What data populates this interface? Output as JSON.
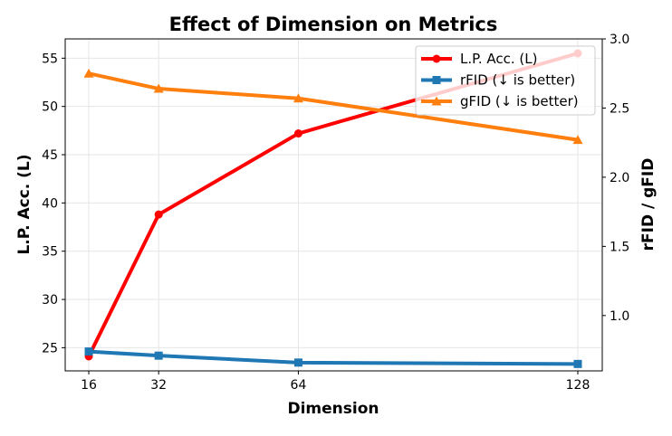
{
  "chart_data": {
    "type": "line",
    "title": "Effect of Dimension on Metrics",
    "xlabel": "Dimension",
    "ylabel": "L.P. Acc. (L)",
    "ylabel_right": "rFID / gFID",
    "x": [
      16,
      32,
      64,
      128
    ],
    "xticks": [
      "16",
      "32",
      "64",
      "128"
    ],
    "xlim": [
      10.6,
      133.6
    ],
    "ylim": [
      22.6,
      57
    ],
    "ylim_right": [
      0.6,
      3.0
    ],
    "yticks": [
      "25",
      "30",
      "35",
      "40",
      "45",
      "50",
      "55"
    ],
    "yticks_right": [
      "1.0",
      "1.5",
      "2.0",
      "2.5",
      "3.0"
    ],
    "grid": true,
    "legend_position": "top-right",
    "series": [
      {
        "name": "L.P. Acc. (L)",
        "axis": "left",
        "color": "#ff0000",
        "marker": "circle",
        "values": [
          24.1,
          38.8,
          47.2,
          55.5
        ]
      },
      {
        "name": "rFID (↓ is better)",
        "axis": "right",
        "color": "#1f77b4",
        "marker": "square",
        "values": [
          0.74,
          0.71,
          0.66,
          0.65
        ]
      },
      {
        "name": "gFID (↓ is better)",
        "axis": "right",
        "color": "#ff7f0e",
        "marker": "triangle",
        "values": [
          2.75,
          2.64,
          2.57,
          2.27
        ]
      }
    ]
  }
}
